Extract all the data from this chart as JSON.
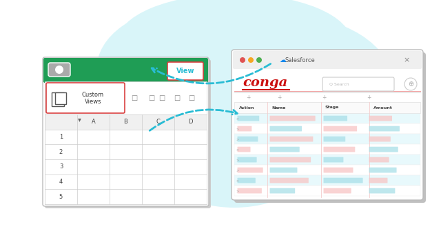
{
  "bg_color": "#f5feff",
  "cloud_color": "#d9f5f9",
  "arrow_color": "#29bcd4",
  "excel_toolbar_color": "#1f9d55",
  "sf_title_color": "#cc1111",
  "sf_dot_red": "#e05252",
  "sf_dot_yellow": "#f5a623",
  "sf_dot_green": "#4caf50",
  "custom_views_border": "#d94040",
  "view_btn_color": "#29bcd4",
  "view_btn_border": "#d94040",
  "sf_row_color1": "#e8f9fc",
  "sf_row_color2": "#ffffff",
  "sf_bar_teal": "#a8dfe8",
  "sf_bar_pink": "#f7c5c5",
  "title_text": "conga",
  "sf_title_text": "Salesforce",
  "col_headers": [
    "Action",
    "Name",
    "Stage",
    "Amount"
  ],
  "excel_cols": [
    "A",
    "B",
    "C",
    "D"
  ],
  "excel_rows": [
    "1",
    "2",
    "3",
    "4",
    "5"
  ]
}
